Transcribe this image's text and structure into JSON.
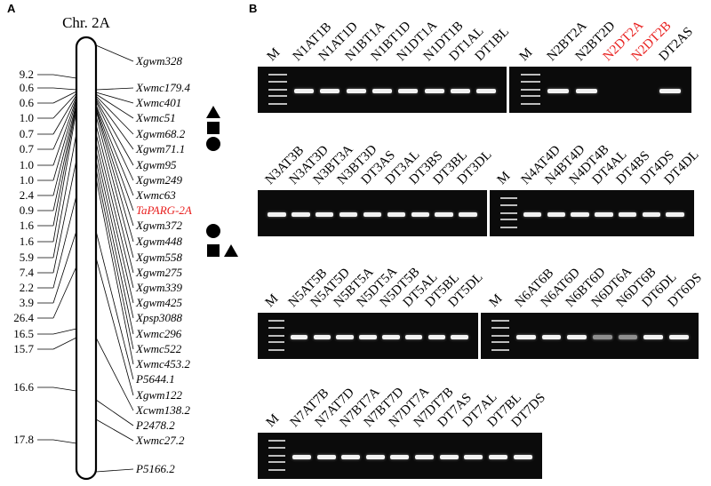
{
  "panel_a": {
    "label": "A",
    "chromosome": "Chr. 2A",
    "distances": [
      "9.2",
      "0.6",
      "0.6",
      "1.0",
      "0.7",
      "0.7",
      "1.0",
      "1.0",
      "2.4",
      "0.9",
      "1.6",
      "1.6",
      "5.9",
      "7.4",
      "2.2",
      "3.9",
      "26.4",
      "16.5",
      "15.7",
      "16.6",
      "17.8"
    ],
    "markers": [
      {
        "name": "Xgwm328",
        "highlight": false
      },
      {
        "name": "Xwmc179.4",
        "highlight": false
      },
      {
        "name": "Xwmc401",
        "highlight": false
      },
      {
        "name": "Xwmc51",
        "highlight": false
      },
      {
        "name": "Xgwm68.2",
        "highlight": false
      },
      {
        "name": "Xgwm71.1",
        "highlight": false
      },
      {
        "name": "Xgwm95",
        "highlight": false
      },
      {
        "name": "Xgwm249",
        "highlight": false
      },
      {
        "name": "Xwmc63",
        "highlight": false
      },
      {
        "name": "TaPARG-2A",
        "highlight": true
      },
      {
        "name": "Xgwm372",
        "highlight": false
      },
      {
        "name": "Xgwm448",
        "highlight": false
      },
      {
        "name": "Xgwm558",
        "highlight": false
      },
      {
        "name": "Xgwm275",
        "highlight": false
      },
      {
        "name": "Xgwm339",
        "highlight": false
      },
      {
        "name": "Xgwm425",
        "highlight": false
      },
      {
        "name": "Xpsp3088",
        "highlight": false
      },
      {
        "name": "Xwmc296",
        "highlight": false
      },
      {
        "name": "Xwmc522",
        "highlight": false
      },
      {
        "name": "Xwmc453.2",
        "highlight": false
      },
      {
        "name": "P5644.1",
        "highlight": false
      },
      {
        "name": "Xgwm122",
        "highlight": false
      },
      {
        "name": "Xcwm138.2",
        "highlight": false
      },
      {
        "name": "P2478.2",
        "highlight": false
      },
      {
        "name": "Xwmc27.2",
        "highlight": false
      },
      {
        "name": "P5166.2",
        "highlight": false
      }
    ],
    "symbols": [
      {
        "shape": "triangle",
        "marker": "Xwmc401"
      },
      {
        "shape": "square",
        "marker": "Xwmc51"
      },
      {
        "shape": "circle",
        "marker": "Xgwm68.2"
      },
      {
        "shape": "circle",
        "marker": "Xgwm372"
      },
      {
        "shape": "square",
        "marker": "Xgwm448"
      },
      {
        "shape": "triangle",
        "marker": "Xgwm448"
      }
    ],
    "highlight_color": "#e8201f"
  },
  "panel_b": {
    "label": "B",
    "gels": [
      {
        "lanes": [
          {
            "name": "M",
            "red": false,
            "band": "ladder"
          },
          {
            "name": "N1AT1B",
            "red": false,
            "band": "strong"
          },
          {
            "name": "N1AT1D",
            "red": false,
            "band": "strong"
          },
          {
            "name": "N1BT1A",
            "red": false,
            "band": "strong"
          },
          {
            "name": "N1BT1D",
            "red": false,
            "band": "strong"
          },
          {
            "name": "N1DT1A",
            "red": false,
            "band": "strong"
          },
          {
            "name": "N1DT1B",
            "red": false,
            "band": "strong"
          },
          {
            "name": "DT1AL",
            "red": false,
            "band": "strong"
          },
          {
            "name": "DT1BL",
            "red": false,
            "band": "strong"
          }
        ]
      },
      {
        "lanes": [
          {
            "name": "M",
            "red": false,
            "band": "ladder"
          },
          {
            "name": "N2BT2A",
            "red": false,
            "band": "strong"
          },
          {
            "name": "N2BT2D",
            "red": false,
            "band": "strong"
          },
          {
            "name": "N2DT2A",
            "red": true,
            "band": "none"
          },
          {
            "name": "N2DT2B",
            "red": true,
            "band": "none"
          },
          {
            "name": "DT2AS",
            "red": false,
            "band": "strong"
          }
        ]
      },
      {
        "lanes": [
          {
            "name": "N3AT3B",
            "red": false,
            "band": "strong"
          },
          {
            "name": "N3AT3D",
            "red": false,
            "band": "strong"
          },
          {
            "name": "N3BT3A",
            "red": false,
            "band": "strong"
          },
          {
            "name": "N3BT3D",
            "red": false,
            "band": "strong"
          },
          {
            "name": "DT3AS",
            "red": false,
            "band": "strong"
          },
          {
            "name": "DT3AL",
            "red": false,
            "band": "strong"
          },
          {
            "name": "DT3BS",
            "red": false,
            "band": "strong"
          },
          {
            "name": "DT3BL",
            "red": false,
            "band": "strong"
          },
          {
            "name": "DT3DL",
            "red": false,
            "band": "strong"
          }
        ]
      },
      {
        "lanes": [
          {
            "name": "M",
            "red": false,
            "band": "ladder"
          },
          {
            "name": "N4AT4D",
            "red": false,
            "band": "strong"
          },
          {
            "name": "N4BT4D",
            "red": false,
            "band": "strong"
          },
          {
            "name": "N4DT4B",
            "red": false,
            "band": "strong"
          },
          {
            "name": "DT4AL",
            "red": false,
            "band": "strong"
          },
          {
            "name": "DT4BS",
            "red": false,
            "band": "strong"
          },
          {
            "name": "DT4DS",
            "red": false,
            "band": "strong"
          },
          {
            "name": "DT4DL",
            "red": false,
            "band": "strong"
          }
        ]
      },
      {
        "lanes": [
          {
            "name": "M",
            "red": false,
            "band": "ladder"
          },
          {
            "name": "N5AT5B",
            "red": false,
            "band": "strong"
          },
          {
            "name": "N5AT5D",
            "red": false,
            "band": "strong"
          },
          {
            "name": "N5BT5A",
            "red": false,
            "band": "strong"
          },
          {
            "name": "N5DT5A",
            "red": false,
            "band": "strong"
          },
          {
            "name": "N5DT5B",
            "red": false,
            "band": "strong"
          },
          {
            "name": "DT5AL",
            "red": false,
            "band": "strong"
          },
          {
            "name": "DT5BL",
            "red": false,
            "band": "strong"
          },
          {
            "name": "DT5DL",
            "red": false,
            "band": "strong"
          }
        ]
      },
      {
        "lanes": [
          {
            "name": "M",
            "red": false,
            "band": "ladder"
          },
          {
            "name": "N6AT6B",
            "red": false,
            "band": "strong"
          },
          {
            "name": "N6AT6D",
            "red": false,
            "band": "strong"
          },
          {
            "name": "N6BT6D",
            "red": false,
            "band": "strong"
          },
          {
            "name": "N6DT6A",
            "red": false,
            "band": "faint"
          },
          {
            "name": "N6DT6B",
            "red": false,
            "band": "faint"
          },
          {
            "name": "DT6DL",
            "red": false,
            "band": "strong"
          },
          {
            "name": "DT6DS",
            "red": false,
            "band": "strong"
          }
        ]
      },
      {
        "lanes": [
          {
            "name": "M",
            "red": false,
            "band": "ladder"
          },
          {
            "name": "N7AT7B",
            "red": false,
            "band": "strong"
          },
          {
            "name": "N7AT7D",
            "red": false,
            "band": "strong"
          },
          {
            "name": "N7BT7A",
            "red": false,
            "band": "strong"
          },
          {
            "name": "N7BT7D",
            "red": false,
            "band": "strong"
          },
          {
            "name": "N7DT7A",
            "red": false,
            "band": "strong"
          },
          {
            "name": "N7DT7B",
            "red": false,
            "band": "strong"
          },
          {
            "name": "DT7AS",
            "red": false,
            "band": "strong"
          },
          {
            "name": "DT7AL",
            "red": false,
            "band": "strong"
          },
          {
            "name": "DT7BL",
            "red": false,
            "band": "strong"
          },
          {
            "name": "DT7DS",
            "red": false,
            "band": "strong"
          }
        ]
      }
    ]
  }
}
